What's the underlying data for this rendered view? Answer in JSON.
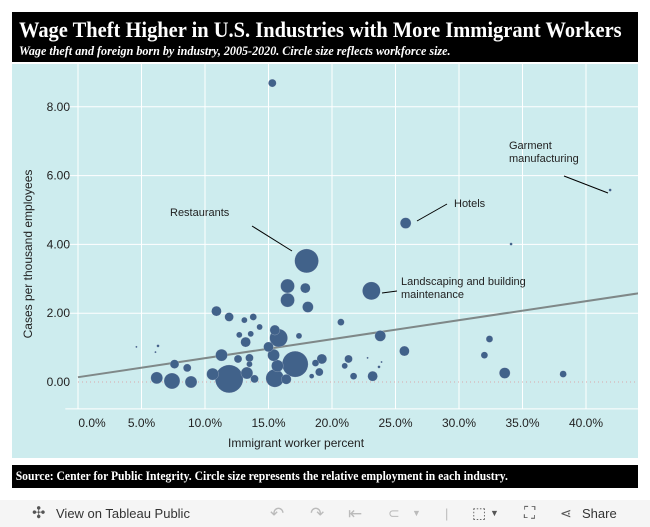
{
  "header": {
    "title": "Wage Theft Higher in U.S. Industries with More Immigrant Workers",
    "subtitle": "Wage theft and foreign born by industry, 2005-2020. Circle size reflects workforce size."
  },
  "chart_data": {
    "type": "scatter",
    "xlabel": "Immigrant worker percent",
    "ylabel": "Cases per thousand employees",
    "xlim": [
      -1,
      44.1
    ],
    "ylim": [
      -0.78,
      9.2
    ],
    "xticks": [
      "0.0%",
      "5.0%",
      "10.0%",
      "15.0%",
      "20.0%",
      "25.0%",
      "30.0%",
      "35.0%",
      "40.0%"
    ],
    "xtick_values": [
      0,
      5,
      10,
      15,
      20,
      25,
      30,
      35,
      40
    ],
    "yticks": [
      "0.00",
      "2.00",
      "4.00",
      "6.00",
      "8.00"
    ],
    "ytick_values": [
      0,
      2,
      4,
      6,
      8
    ],
    "grid": true,
    "bubble_color": "#41628a",
    "background": "#cdecee",
    "trend_line": {
      "color": "#7f8888",
      "start": [
        0,
        0.14
      ],
      "end": [
        44.1,
        2.62
      ]
    },
    "points": [
      {
        "x": 15.3,
        "y": 8.69,
        "size": 16
      },
      {
        "x": 18.0,
        "y": 3.52,
        "size": 144,
        "label": "Restaurants"
      },
      {
        "x": 16.5,
        "y": 2.79,
        "size": 49
      },
      {
        "x": 17.9,
        "y": 2.73,
        "size": 25
      },
      {
        "x": 16.5,
        "y": 2.38,
        "size": 49
      },
      {
        "x": 18.1,
        "y": 2.18,
        "size": 30
      },
      {
        "x": 10.9,
        "y": 2.06,
        "size": 25
      },
      {
        "x": 11.9,
        "y": 1.89,
        "size": 20
      },
      {
        "x": 13.1,
        "y": 1.8,
        "size": 9
      },
      {
        "x": 13.8,
        "y": 1.89,
        "size": 12
      },
      {
        "x": 14.3,
        "y": 1.6,
        "size": 9
      },
      {
        "x": 12.7,
        "y": 1.37,
        "size": 9
      },
      {
        "x": 13.6,
        "y": 1.4,
        "size": 9
      },
      {
        "x": 13.2,
        "y": 1.16,
        "size": 25
      },
      {
        "x": 15.5,
        "y": 1.51,
        "size": 25
      },
      {
        "x": 15.8,
        "y": 1.28,
        "size": 81
      },
      {
        "x": 15.0,
        "y": 1.02,
        "size": 25
      },
      {
        "x": 17.4,
        "y": 1.34,
        "size": 9
      },
      {
        "x": 11.3,
        "y": 0.78,
        "size": 36
      },
      {
        "x": 4.6,
        "y": 1.02,
        "size": 1
      },
      {
        "x": 6.3,
        "y": 1.05,
        "size": 2
      },
      {
        "x": 6.1,
        "y": 0.87,
        "size": 1
      },
      {
        "x": 7.6,
        "y": 0.52,
        "size": 20
      },
      {
        "x": 8.6,
        "y": 0.41,
        "size": 16
      },
      {
        "x": 6.2,
        "y": 0.12,
        "size": 36
      },
      {
        "x": 7.4,
        "y": 0.03,
        "size": 64
      },
      {
        "x": 8.9,
        "y": 0.0,
        "size": 36
      },
      {
        "x": 11.9,
        "y": 0.09,
        "size": 196
      },
      {
        "x": 10.6,
        "y": 0.23,
        "size": 36
      },
      {
        "x": 12.6,
        "y": 0.67,
        "size": 16
      },
      {
        "x": 13.5,
        "y": 0.7,
        "size": 16
      },
      {
        "x": 13.5,
        "y": 0.52,
        "size": 9
      },
      {
        "x": 13.3,
        "y": 0.26,
        "size": 36
      },
      {
        "x": 13.9,
        "y": 0.09,
        "size": 16
      },
      {
        "x": 15.5,
        "y": 0.11,
        "size": 81
      },
      {
        "x": 16.4,
        "y": 0.08,
        "size": 25
      },
      {
        "x": 17.1,
        "y": 0.52,
        "size": 169
      },
      {
        "x": 15.7,
        "y": 0.47,
        "size": 36
      },
      {
        "x": 15.4,
        "y": 0.78,
        "size": 36
      },
      {
        "x": 18.7,
        "y": 0.55,
        "size": 12
      },
      {
        "x": 18.4,
        "y": 0.17,
        "size": 6
      },
      {
        "x": 19.0,
        "y": 0.29,
        "size": 16
      },
      {
        "x": 19.2,
        "y": 0.67,
        "size": 25
      },
      {
        "x": 41.9,
        "y": 5.58,
        "size": 2,
        "label": "Garment manufacturing"
      },
      {
        "x": 25.8,
        "y": 4.62,
        "size": 30,
        "label": "Hotels"
      },
      {
        "x": 34.1,
        "y": 4.01,
        "size": 2
      },
      {
        "x": 23.1,
        "y": 2.65,
        "size": 81,
        "label": "Landscaping and building maintenance"
      },
      {
        "x": 20.7,
        "y": 1.74,
        "size": 12
      },
      {
        "x": 23.8,
        "y": 1.34,
        "size": 30
      },
      {
        "x": 32.4,
        "y": 1.25,
        "size": 12
      },
      {
        "x": 25.7,
        "y": 0.9,
        "size": 25
      },
      {
        "x": 32.0,
        "y": 0.78,
        "size": 12
      },
      {
        "x": 21.3,
        "y": 0.67,
        "size": 16
      },
      {
        "x": 22.8,
        "y": 0.7,
        "size": 1
      },
      {
        "x": 21.0,
        "y": 0.47,
        "size": 9
      },
      {
        "x": 23.7,
        "y": 0.44,
        "size": 2
      },
      {
        "x": 23.9,
        "y": 0.58,
        "size": 1
      },
      {
        "x": 21.7,
        "y": 0.17,
        "size": 12
      },
      {
        "x": 23.2,
        "y": 0.17,
        "size": 25
      },
      {
        "x": 33.6,
        "y": 0.26,
        "size": 30
      },
      {
        "x": 38.2,
        "y": 0.23,
        "size": 12
      }
    ],
    "annotations": [
      {
        "text": "Restaurants",
        "point": "Restaurants"
      },
      {
        "text": "Hotels",
        "point": "Hotels"
      },
      {
        "text": "Landscaping and building",
        "text2": "maintenance",
        "point": "Landscaping and building maintenance"
      },
      {
        "text": "Garment",
        "text2": "manufacturing",
        "point": "Garment manufacturing"
      }
    ]
  },
  "source": "Source: Center for Public Integrity. Circle size represents the relative employment in each industry.",
  "toolbar": {
    "view_label": "View on Tableau Public",
    "share_label": "Share"
  }
}
